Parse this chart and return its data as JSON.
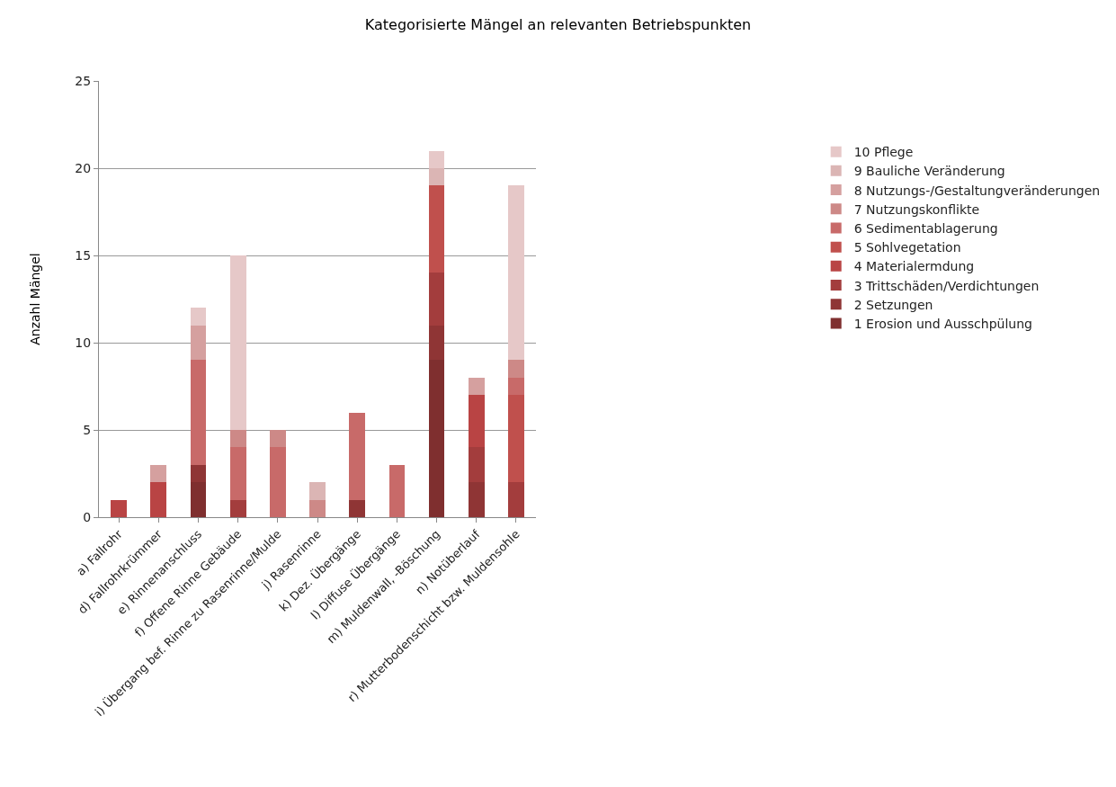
{
  "chart_data": {
    "type": "bar",
    "title": "Kategorisierte Mängel an relevanten Betriebspunkten",
    "ylabel": "Anzahl Mängel",
    "categories": [
      "a) Fallrohr",
      "d) Fallrohrkrümmer",
      "e) Rinnenanschluss",
      "f) Offene Rinne Gebäude",
      "i) Übergang bef. Rinne zu Rasenrinne/Mulde",
      "j) Rasenrinne",
      "k) Dez. Übergänge",
      "l) Diffuse Übergänge",
      "m) Muldenwall, -Böschung",
      "n) Notüberlauf",
      "r) Mutterbodenschicht bzw. Muldensohle"
    ],
    "stacked": true,
    "ylim": [
      0,
      25
    ],
    "yticks": [
      0,
      5,
      10,
      15,
      20,
      25
    ],
    "grid": "y",
    "legend": "right",
    "series": [
      {
        "name": "1 Erosion und Ausschpülung",
        "color": "#7f2f2f",
        "values": [
          0,
          0,
          2,
          0,
          0,
          0,
          0,
          0,
          9,
          0,
          0
        ]
      },
      {
        "name": "2 Setzungen",
        "color": "#8f3535",
        "values": [
          0,
          0,
          1,
          0,
          0,
          0,
          1,
          0,
          2,
          2,
          0
        ]
      },
      {
        "name": "3 Trittschäden/Verdichtungen",
        "color": "#a33d3d",
        "values": [
          0,
          0,
          0,
          1,
          0,
          0,
          0,
          0,
          3,
          2,
          2
        ]
      },
      {
        "name": "4 Materialermdung",
        "color": "#b94444",
        "values": [
          1,
          2,
          0,
          0,
          0,
          0,
          0,
          0,
          0,
          3,
          0
        ]
      },
      {
        "name": "5 Sohlvegetation",
        "color": "#c0504d",
        "values": [
          0,
          0,
          0,
          0,
          0,
          0,
          0,
          0,
          5,
          0,
          5
        ]
      },
      {
        "name": "6 Sedimentablagerung",
        "color": "#c86a69",
        "values": [
          0,
          0,
          6,
          3,
          4,
          0,
          5,
          3,
          0,
          0,
          1
        ]
      },
      {
        "name": "7 Nutzungskonflikte",
        "color": "#cd8987",
        "values": [
          0,
          0,
          0,
          1,
          1,
          1,
          0,
          0,
          0,
          0,
          1
        ]
      },
      {
        "name": "8 Nutzungs-/Gestaltungveränderungen",
        "color": "#d5a09f",
        "values": [
          0,
          1,
          2,
          0,
          0,
          0,
          0,
          0,
          0,
          1,
          0
        ]
      },
      {
        "name": "9 Bauliche Veränderung",
        "color": "#dbb5b4",
        "values": [
          0,
          0,
          0,
          0,
          0,
          1,
          0,
          0,
          1,
          0,
          0
        ]
      },
      {
        "name": "10 Pflege",
        "color": "#e6c8c8",
        "values": [
          0,
          0,
          1,
          10,
          0,
          0,
          0,
          0,
          1,
          0,
          10
        ]
      }
    ]
  }
}
